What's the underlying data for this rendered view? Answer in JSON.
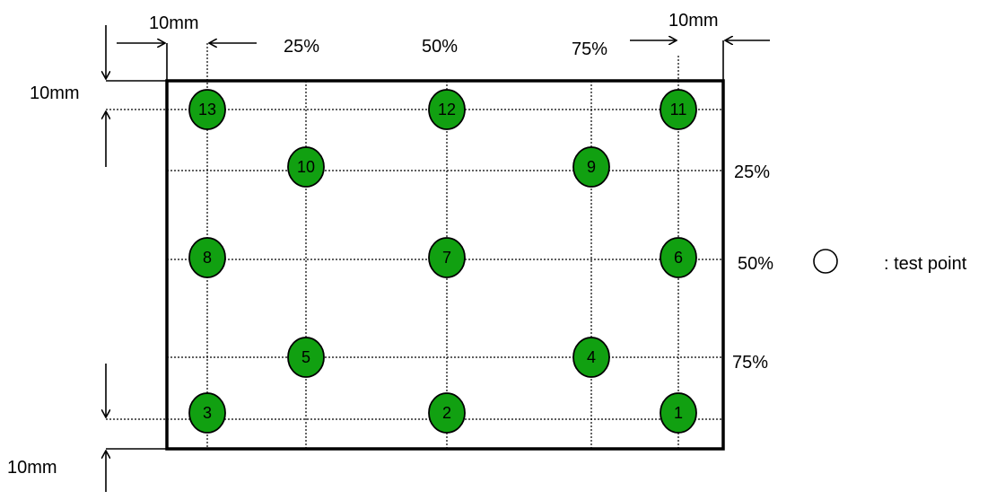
{
  "labels": {
    "top_left_margin": "10mm",
    "top_right_margin": "10mm",
    "left_top_margin": "10mm",
    "left_bottom_margin": "10mm",
    "col_25": "25%",
    "col_50": "50%",
    "col_75": "75%",
    "row_25": "25%",
    "row_50": "50%",
    "row_75": "75%",
    "legend": ": test point"
  },
  "points": [
    {
      "label": "1",
      "col": "right",
      "row": "bottom"
    },
    {
      "label": "2",
      "col": "50",
      "row": "bottom"
    },
    {
      "label": "3",
      "col": "left",
      "row": "bottom"
    },
    {
      "label": "4",
      "col": "75",
      "row": "75"
    },
    {
      "label": "5",
      "col": "25",
      "row": "75"
    },
    {
      "label": "6",
      "col": "right",
      "row": "50"
    },
    {
      "label": "7",
      "col": "50",
      "row": "50"
    },
    {
      "label": "8",
      "col": "left",
      "row": "50"
    },
    {
      "label": "9",
      "col": "75",
      "row": "25"
    },
    {
      "label": "10",
      "col": "25",
      "row": "25"
    },
    {
      "label": "11",
      "col": "right",
      "row": "top"
    },
    {
      "label": "12",
      "col": "50",
      "row": "top"
    },
    {
      "label": "13",
      "col": "left",
      "row": "top"
    }
  ],
  "colors": {
    "point_fill": "#11a011",
    "outline": "#000000"
  }
}
